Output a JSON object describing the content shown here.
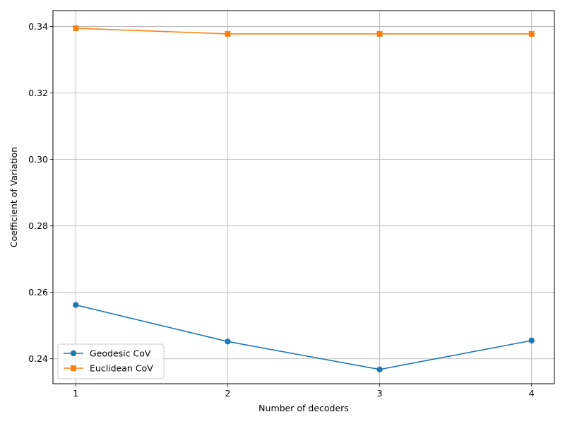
{
  "chart_data": {
    "type": "line",
    "title": "",
    "xlabel": "Number of decoders",
    "ylabel": "Coefficient of Variation",
    "x": [
      1,
      2,
      3,
      4
    ],
    "x_tick_labels": [
      "1",
      "2",
      "3",
      "4"
    ],
    "y_ticks": [
      0.24,
      0.26,
      0.28,
      0.3,
      0.32,
      0.34
    ],
    "y_tick_labels": [
      "0.24",
      "0.26",
      "0.28",
      "0.30",
      "0.32",
      "0.34"
    ],
    "xlim": [
      0.85,
      4.15
    ],
    "ylim": [
      0.2325,
      0.3448
    ],
    "grid": true,
    "legend_position": "lower-left",
    "series": [
      {
        "name": "Geodesic CoV",
        "color": "#1f77b4",
        "marker": "circle",
        "values": [
          0.2562,
          0.2452,
          0.2368,
          0.2455
        ]
      },
      {
        "name": "Euclidean CoV",
        "color": "#ff7f0e",
        "marker": "square",
        "values": [
          0.3395,
          0.3378,
          0.3378,
          0.3378
        ]
      }
    ]
  }
}
